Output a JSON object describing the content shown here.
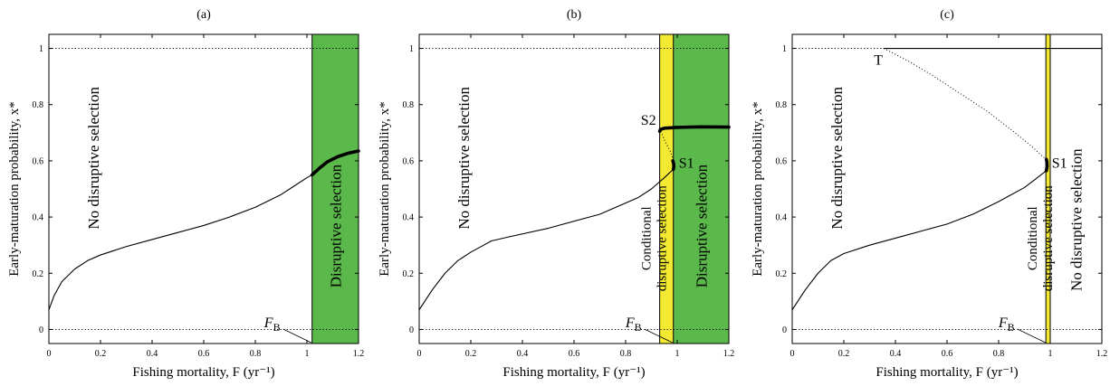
{
  "chart_data": [
    {
      "type": "line",
      "title": "(a)",
      "xlabel": "Fishing mortality, F (yr⁻¹)",
      "ylabel": "Early-maturation probability, x*",
      "xlim": [
        0,
        1.2
      ],
      "ylim": [
        -0.05,
        1.05
      ],
      "xticks": [
        "0",
        "0.2",
        "0.4",
        "0.6",
        "0.8",
        "1",
        "1.2"
      ],
      "yticks": [
        "0",
        "0.2",
        "0.4",
        "0.6",
        "0.8",
        "1"
      ],
      "reference_lines_y": [
        0,
        1
      ],
      "grid": false,
      "regions": [
        {
          "label": "No disruptive selection",
          "color": "#ffffff",
          "x": [
            0,
            1.02
          ]
        },
        {
          "label": "Disruptive selection",
          "color": "#5ab94a",
          "x": [
            1.02,
            1.2
          ]
        }
      ],
      "fb": {
        "label": "F_B",
        "x": 1.02
      },
      "series": [
        {
          "style": "thin",
          "x": [
            0,
            0.02,
            0.05,
            0.1,
            0.15,
            0.2,
            0.3,
            0.4,
            0.5,
            0.6,
            0.7,
            0.8,
            0.9,
            0.95,
            1.0,
            1.02
          ],
          "y": [
            0.07,
            0.12,
            0.17,
            0.215,
            0.245,
            0.265,
            0.295,
            0.32,
            0.345,
            0.37,
            0.4,
            0.435,
            0.48,
            0.51,
            0.54,
            0.55
          ]
        },
        {
          "style": "thick",
          "x": [
            1.02,
            1.05,
            1.08,
            1.12,
            1.16,
            1.2
          ],
          "y": [
            0.55,
            0.575,
            0.597,
            0.615,
            0.627,
            0.635
          ]
        }
      ]
    },
    {
      "type": "line",
      "title": "(b)",
      "xlabel": "Fishing mortality, F (yr⁻¹)",
      "ylabel": "Early-maturation probability, x*",
      "xlim": [
        0,
        1.2
      ],
      "ylim": [
        -0.05,
        1.05
      ],
      "xticks": [
        "0",
        "0.2",
        "0.4",
        "0.6",
        "0.8",
        "1",
        "1.2"
      ],
      "yticks": [
        "0",
        "0.2",
        "0.4",
        "0.6",
        "0.8",
        "1"
      ],
      "reference_lines_y": [
        0,
        1
      ],
      "grid": false,
      "regions": [
        {
          "label": "No disruptive selection",
          "color": "#ffffff",
          "x": [
            0,
            0.932
          ]
        },
        {
          "label": "Conditional\ndisruptive selection",
          "color": "#f3e832",
          "x": [
            0.932,
            0.985
          ]
        },
        {
          "label": "Disruptive selection",
          "color": "#5ab94a",
          "x": [
            0.985,
            1.2
          ]
        }
      ],
      "fb": {
        "label": "F_B",
        "x": 0.985
      },
      "markers": [
        {
          "label": "S2",
          "x": 0.932,
          "y": 0.715
        },
        {
          "label": "S1",
          "x": 0.985,
          "y": 0.585
        }
      ],
      "series": [
        {
          "style": "thin",
          "x": [
            0,
            0.05,
            0.1,
            0.15,
            0.2,
            0.25,
            0.28,
            0.35,
            0.5,
            0.7,
            0.85,
            0.9,
            0.95,
            0.985
          ],
          "y": [
            0.07,
            0.14,
            0.2,
            0.245,
            0.275,
            0.3,
            0.315,
            0.33,
            0.36,
            0.41,
            0.47,
            0.5,
            0.54,
            0.57
          ]
        },
        {
          "style": "thick",
          "x": [
            0.932,
            0.935,
            0.95,
            1.0,
            1.1,
            1.2
          ],
          "y": [
            0.705,
            0.712,
            0.716,
            0.719,
            0.721,
            0.72
          ]
        },
        {
          "style": "thick",
          "x": [
            0.985,
            0.987,
            0.986,
            0.983
          ],
          "y": [
            0.57,
            0.58,
            0.59,
            0.6
          ]
        },
        {
          "style": "dotted",
          "x": [
            0.932,
            0.95,
            0.975,
            0.985
          ],
          "y": [
            0.715,
            0.675,
            0.63,
            0.6
          ]
        }
      ]
    },
    {
      "type": "line",
      "title": "(c)",
      "xlabel": "Fishing mortality, F (yr⁻¹)",
      "ylabel": "Early-maturation probability, x*",
      "xlim": [
        0,
        1.2
      ],
      "ylim": [
        -0.05,
        1.05
      ],
      "xticks": [
        "0",
        "0.2",
        "0.4",
        "0.6",
        "0.8",
        "1",
        "1.2"
      ],
      "yticks": [
        "0",
        "0.2",
        "0.4",
        "0.6",
        "0.8",
        "1"
      ],
      "reference_lines_y": [
        0,
        1
      ],
      "grid": false,
      "regions": [
        {
          "label": "No disruptive selection",
          "color": "#ffffff",
          "x": [
            0,
            0.983
          ]
        },
        {
          "label": "Conditional\ndisruptive selection",
          "color": "#f3e832",
          "x": [
            0.983,
            1.0
          ]
        },
        {
          "label": "No disruptive selection",
          "color": "#ffffff",
          "x": [
            1.0,
            1.2
          ]
        }
      ],
      "fb": {
        "label": "F_B",
        "x": 0.985
      },
      "markers": [
        {
          "label": "T",
          "x": 0.355,
          "y": 1.0
        },
        {
          "label": "S1",
          "x": 0.985,
          "y": 0.585
        }
      ],
      "series": [
        {
          "style": "thin",
          "x": [
            0,
            0.05,
            0.1,
            0.15,
            0.2,
            0.3,
            0.4,
            0.5,
            0.6,
            0.7,
            0.8,
            0.9,
            0.95,
            0.985
          ],
          "y": [
            0.07,
            0.14,
            0.2,
            0.245,
            0.27,
            0.3,
            0.325,
            0.35,
            0.375,
            0.41,
            0.455,
            0.505,
            0.54,
            0.565
          ]
        },
        {
          "style": "thick",
          "x": [
            0.985,
            0.988,
            0.987,
            0.985
          ],
          "y": [
            0.565,
            0.58,
            0.595,
            0.605
          ]
        },
        {
          "style": "thin",
          "x": [
            0.355,
            1.2
          ],
          "y": [
            1.0,
            1.0
          ]
        },
        {
          "style": "dotted",
          "x": [
            0.355,
            0.45,
            0.55,
            0.65,
            0.75,
            0.85,
            0.93,
            0.965,
            0.985
          ],
          "y": [
            1.0,
            0.955,
            0.9,
            0.84,
            0.78,
            0.71,
            0.65,
            0.62,
            0.605
          ]
        }
      ]
    }
  ]
}
